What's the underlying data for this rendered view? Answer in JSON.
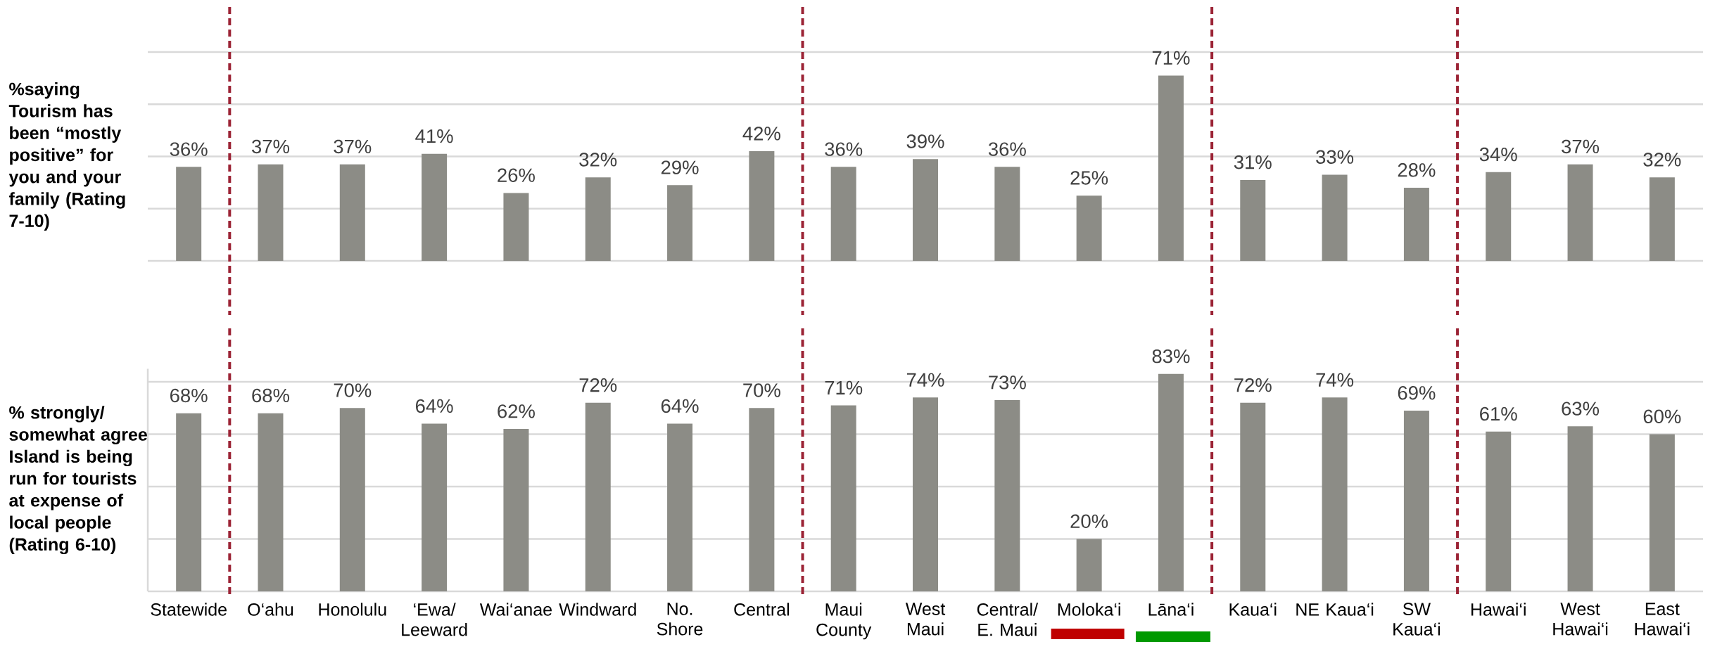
{
  "chart_data": [
    {
      "type": "bar",
      "ylabel": "%saying Tourism has been “mostly positive” for you and your family (Rating 7-10)",
      "values": [
        36,
        37,
        37,
        41,
        26,
        32,
        29,
        42,
        36,
        39,
        36,
        25,
        71,
        31,
        33,
        28,
        34,
        37,
        32
      ],
      "value_labels": [
        "36%",
        "37%",
        "37%",
        "41%",
        "26%",
        "32%",
        "29%",
        "42%",
        "36%",
        "39%",
        "36%",
        "25%",
        "71%",
        "31%",
        "33%",
        "28%",
        "34%",
        "37%",
        "32%"
      ],
      "color": "#8c8c86",
      "ylim": [
        0,
        80
      ],
      "yticks": [
        {
          "value": 0,
          "label": null
        },
        {
          "value": 20,
          "label": null
        },
        {
          "value": 40,
          "label": null
        },
        {
          "value": 60,
          "label": null
        },
        {
          "value": 80,
          "label": null
        }
      ],
      "grid": "y",
      "tick_labels": false
    },
    {
      "type": "bar",
      "ylabel": "% strongly/ somewhat agree Island is being run for tourists at expense of local people (Rating 6-10)",
      "categories": [
        "Statewide",
        "O‘ahu",
        "Honolulu",
        "‘Ewa/ Leeward",
        "Wai‘anae",
        "Windward",
        "No. Shore",
        "Central",
        "Maui County",
        "West Maui",
        "Central/ E. Maui",
        "Moloka‘i",
        "Lāna‘i",
        "Kaua‘i",
        "NE Kaua‘i",
        "SW Kaua‘i",
        "Hawai‘i",
        "West Hawai‘i",
        "East Hawai‘i"
      ],
      "values": [
        68,
        68,
        70,
        64,
        62,
        72,
        64,
        70,
        71,
        74,
        73,
        20,
        83,
        72,
        74,
        69,
        61,
        63,
        60
      ],
      "value_labels": [
        "68%",
        "68%",
        "70%",
        "64%",
        "62%",
        "72%",
        "64%",
        "70%",
        "71%",
        "74%",
        "73%",
        "20%",
        "83%",
        "72%",
        "74%",
        "69%",
        "61%",
        "63%",
        "60%"
      ],
      "color": "#8c8c86",
      "ylim": [
        0,
        85
      ],
      "yticks": [
        {
          "value": 0,
          "label": null
        },
        {
          "value": 20,
          "label": null
        },
        {
          "value": 40,
          "label": null
        },
        {
          "value": 60,
          "label": null
        },
        {
          "value": 80,
          "label": null
        }
      ],
      "grid": "y",
      "tick_labels": "x"
    }
  ]
}
